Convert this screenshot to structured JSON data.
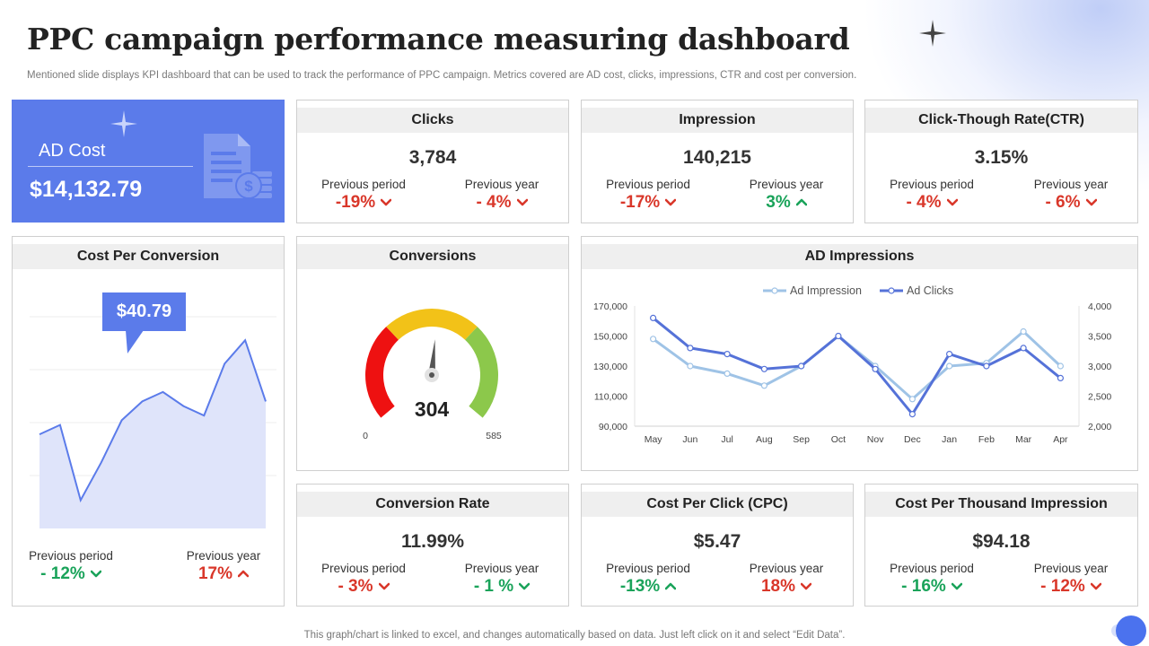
{
  "header": {
    "title": "PPC campaign performance measuring dashboard",
    "subtitle": "Mentioned slide displays KPI dashboard that can be used to track the performance of PPC campaign. Metrics covered are AD cost, clicks, impressions, CTR and cost per conversion."
  },
  "ad_cost": {
    "label": "AD Cost",
    "value": "$14,132.79"
  },
  "kpis": {
    "clicks": {
      "title": "Clicks",
      "value": "3,784",
      "prev_period_label": "Previous period",
      "prev_period": "-19%",
      "prev_period_dir": "down",
      "prev_year_label": "Previous year",
      "prev_year": "- 4%",
      "prev_year_dir": "down"
    },
    "impression": {
      "title": "Impression",
      "value": "140,215",
      "prev_period_label": "Previous period",
      "prev_period": "-17%",
      "prev_period_dir": "down",
      "prev_year_label": "Previous year",
      "prev_year": "3%",
      "prev_year_dir": "up"
    },
    "ctr": {
      "title": "Click-Though Rate(CTR)",
      "value": "3.15%",
      "prev_period_label": "Previous period",
      "prev_period": "- 4%",
      "prev_period_dir": "down",
      "prev_year_label": "Previous year",
      "prev_year": "- 6%",
      "prev_year_dir": "down"
    },
    "conversion_rate": {
      "title": "Conversion Rate",
      "value": "11.99%",
      "prev_period_label": "Previous period",
      "prev_period": "- 3%",
      "prev_period_dir": "down",
      "prev_year_label": "Previous year",
      "prev_year": "- 1 %",
      "prev_year_dir": "down"
    },
    "cpc": {
      "title": "Cost Per Click (CPC)",
      "value": "$5.47",
      "prev_period_label": "Previous period",
      "prev_period": "-13%",
      "prev_period_dir": "up",
      "prev_year_label": "Previous year",
      "prev_year": "18%",
      "prev_year_dir": "down"
    },
    "cpm": {
      "title": "Cost Per Thousand Impression",
      "value": "$94.18",
      "prev_period_label": "Previous period",
      "prev_period": "- 16%",
      "prev_period_dir": "down",
      "prev_year_label": "Previous year",
      "prev_year": "- 12%",
      "prev_year_dir": "down"
    }
  },
  "cost_per_conversion": {
    "title": "Cost Per Conversion",
    "callout": "$40.79",
    "prev_period_label": "Previous period",
    "prev_period": "- 12%",
    "prev_period_dir": "down",
    "prev_year_label": "Previous year",
    "prev_year": "17%",
    "prev_year_dir": "up"
  },
  "conversions": {
    "title": "Conversions",
    "min_label": "0",
    "max_label": "585"
  },
  "ad_impressions": {
    "title": "AD Impressions"
  },
  "footer": "This graph/chart is linked to excel,  and changes automatically based on data. Just left click on it and select “Edit Data”.",
  "colors": {
    "accent": "#5b7bea",
    "red": "#d9372a",
    "green": "#1aa35a",
    "series_impression": "#9fc3e6",
    "series_clicks": "#5572d8"
  },
  "chart_data": [
    {
      "type": "area",
      "title": "Cost Per Conversion",
      "values": [
        20,
        22,
        6,
        14,
        23,
        27,
        29,
        26,
        24,
        35,
        40,
        27
      ],
      "ylim": [
        0,
        45
      ],
      "grid": true
    },
    {
      "type": "gauge",
      "title": "Conversions",
      "value": 304,
      "min": 0,
      "max": 585,
      "bands": [
        {
          "from": 0,
          "to": 195,
          "color": "#ee1111"
        },
        {
          "from": 195,
          "to": 390,
          "color": "#f2c218"
        },
        {
          "from": 390,
          "to": 585,
          "color": "#8cc84b"
        }
      ]
    },
    {
      "type": "line",
      "title": "AD Impressions",
      "categories": [
        "May",
        "Jun",
        "Jul",
        "Aug",
        "Sep",
        "Oct",
        "Nov",
        "Dec",
        "Jan",
        "Feb",
        "Mar",
        "Apr"
      ],
      "series": [
        {
          "name": "Ad Impression",
          "axis": "left",
          "values": [
            148000,
            130000,
            125000,
            117000,
            130000,
            150000,
            130000,
            108000,
            130000,
            132000,
            153000,
            130000
          ]
        },
        {
          "name": "Ad Clicks",
          "axis": "right",
          "values": [
            3800,
            3300,
            3200,
            2950,
            3000,
            3500,
            2950,
            2200,
            3200,
            3000,
            3300,
            2800
          ]
        }
      ],
      "ylim_left": [
        90000,
        170000
      ],
      "yticks_left": [
        "90,000",
        "110,000",
        "130,000",
        "150,000",
        "170,000"
      ],
      "ylim_right": [
        2000,
        4000
      ],
      "yticks_right": [
        "2,000",
        "2,500",
        "3,000",
        "3,500",
        "4,000"
      ],
      "legend": "top",
      "grid": false
    }
  ]
}
